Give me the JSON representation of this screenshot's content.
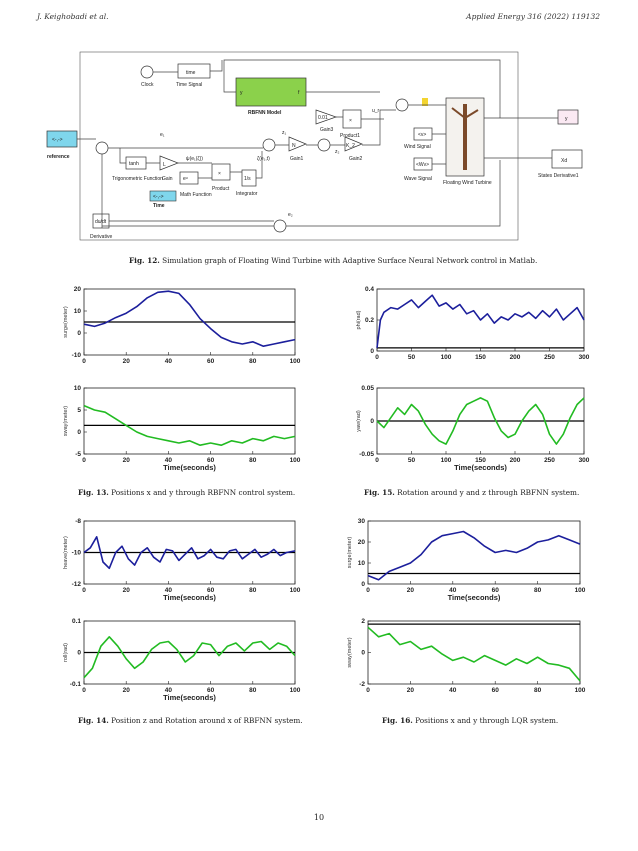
{
  "header": {
    "left": "J. Keighobadi et al.",
    "right": "Applied Energy 316 (2022) 119132"
  },
  "page_number": "10",
  "diagram": {
    "blocks": {
      "clock": "Clock",
      "time": "time",
      "time_signal": "Time Signal",
      "rbfnn": "RBFNN Model",
      "rbfnn_in": "y",
      "rbfnn_out": "f",
      "gain3_val": "0.01",
      "gain3": "Gain3",
      "product1": "Product1",
      "ur": "u_r",
      "y_out": "y",
      "reference_sym": "<-,->",
      "reference": "reference",
      "e1": "e₁",
      "tanh": "tanh",
      "trig": "Trigonometric Function",
      "gain_val": "L",
      "gain": "Gain",
      "psi": "ψ(e₁(ζ))",
      "zeta": "ζ(e₁,t)",
      "math": "Math Function",
      "math_sym": "eᵘ",
      "product": "Product",
      "integrator_sym": "1/s",
      "integrator": "Integrator",
      "time2": "Time",
      "clock2_sym": "<-,->",
      "z1": "z₁",
      "gain1_val": "N",
      "gain1": "Gain1",
      "z2": "z₂",
      "gain2_val": "K_2",
      "gain2": "Gain2",
      "wind_in": "<v>",
      "wind": "Wind Signal",
      "wave_in": "<Wv>",
      "wave": "Wave Signal",
      "turbine": "Floating Wind Turbine",
      "xd": "Xd",
      "states": "States Derivative1",
      "du": "du/dt",
      "derivative": "Derivative",
      "e2": "e₂"
    }
  },
  "captions": {
    "fig12": {
      "label": "Fig. 12.",
      "text": "Simulation graph of Floating Wind Turbine with Adaptive Surface Neural Network control in Matlab."
    },
    "fig13": {
      "label": "Fig. 13.",
      "text": "Positions x and y through RBFNN control system."
    },
    "fig15": {
      "label": "Fig. 15.",
      "text": "Rotation around y and z through RBFNN system."
    },
    "fig14": {
      "label": "Fig. 14.",
      "text": "Position z and Rotation around x of RBFNN system."
    },
    "fig16": {
      "label": "Fig. 16.",
      "text": "Positions x and y through LQR system."
    }
  },
  "chart_data": [
    {
      "id": "f13a",
      "type": "line",
      "color": "#1c1f9c",
      "ylabel": "surge(meter)",
      "xlabel": "",
      "xlim": [
        0,
        100
      ],
      "ylim": [
        -10,
        20
      ],
      "xticks": [
        0,
        20,
        40,
        60,
        80,
        100
      ],
      "yticks": [
        20,
        10,
        0,
        -10
      ],
      "ref": 5,
      "x": [
        0,
        5,
        10,
        15,
        20,
        25,
        30,
        35,
        40,
        45,
        50,
        55,
        60,
        65,
        70,
        75,
        80,
        85,
        90,
        95,
        100
      ],
      "y": [
        4,
        3,
        4.5,
        7,
        9,
        12,
        16,
        18.5,
        19,
        18,
        13,
        6.5,
        2,
        -2,
        -4,
        -5,
        -4,
        -6,
        -5,
        -4,
        -3
      ]
    },
    {
      "id": "f13b",
      "type": "line",
      "color": "#22bb22",
      "ylabel": "sway(meter)",
      "xlabel": "Time(seconds)",
      "xlim": [
        0,
        100
      ],
      "ylim": [
        -5,
        10
      ],
      "xticks": [
        0,
        20,
        40,
        60,
        80,
        100
      ],
      "yticks": [
        10,
        5,
        0,
        -5
      ],
      "ref": 1.5,
      "x": [
        0,
        5,
        10,
        15,
        20,
        25,
        30,
        35,
        40,
        45,
        50,
        55,
        60,
        65,
        70,
        75,
        80,
        85,
        90,
        95,
        100
      ],
      "y": [
        6,
        5,
        4.5,
        3,
        1.5,
        0,
        -1,
        -1.5,
        -2,
        -2.5,
        -2,
        -3,
        -2.5,
        -3,
        -2,
        -2.5,
        -1.5,
        -2,
        -1,
        -1.5,
        -1
      ]
    },
    {
      "id": "f15a",
      "type": "line",
      "color": "#1c1f9c",
      "ylabel": "phi(rad)",
      "xlabel": "",
      "xlim": [
        0,
        300
      ],
      "ylim": [
        0,
        0.4
      ],
      "xticks": [
        0,
        50,
        100,
        150,
        200,
        250,
        300
      ],
      "yticks": [
        0.4,
        0.2,
        0
      ],
      "ref": 0.02,
      "x": [
        0,
        5,
        10,
        20,
        30,
        40,
        50,
        60,
        70,
        80,
        90,
        100,
        110,
        120,
        130,
        140,
        150,
        160,
        170,
        180,
        190,
        200,
        210,
        220,
        230,
        240,
        250,
        260,
        270,
        280,
        290,
        300
      ],
      "y": [
        0.02,
        0.2,
        0.25,
        0.28,
        0.27,
        0.3,
        0.33,
        0.28,
        0.32,
        0.36,
        0.29,
        0.31,
        0.27,
        0.3,
        0.24,
        0.26,
        0.2,
        0.24,
        0.18,
        0.22,
        0.2,
        0.24,
        0.22,
        0.25,
        0.21,
        0.26,
        0.22,
        0.27,
        0.2,
        0.24,
        0.28,
        0.2
      ]
    },
    {
      "id": "f15b",
      "type": "line",
      "color": "#22bb22",
      "ylabel": "yaw(rad)",
      "xlabel": "Time(seconds)",
      "xlim": [
        0,
        300
      ],
      "ylim": [
        -0.05,
        0.05
      ],
      "xticks": [
        0,
        50,
        100,
        150,
        200,
        250,
        300
      ],
      "yticks": [
        0.05,
        0,
        -0.05
      ],
      "ref": 0,
      "x": [
        0,
        10,
        20,
        30,
        40,
        50,
        60,
        70,
        80,
        90,
        100,
        110,
        120,
        130,
        140,
        150,
        160,
        170,
        180,
        190,
        200,
        210,
        220,
        230,
        240,
        250,
        260,
        270,
        280,
        290,
        300
      ],
      "y": [
        0,
        -0.01,
        0.005,
        0.02,
        0.01,
        0.025,
        0.015,
        -0.005,
        -0.02,
        -0.03,
        -0.035,
        -0.015,
        0.01,
        0.025,
        0.03,
        0.035,
        0.03,
        0.005,
        -0.015,
        -0.025,
        -0.02,
        0,
        0.015,
        0.025,
        0.01,
        -0.02,
        -0.035,
        -0.02,
        0.005,
        0.025,
        0.035
      ]
    },
    {
      "id": "f14a",
      "type": "line",
      "color": "#1c1f9c",
      "ylabel": "heave(meter)",
      "xlabel": "Time(seconds)",
      "xlim": [
        0,
        100
      ],
      "ylim": [
        -12,
        -8
      ],
      "xticks": [
        0,
        20,
        40,
        60,
        80,
        100
      ],
      "yticks": [
        -8,
        -10,
        -12
      ],
      "ref": -10,
      "x": [
        0,
        3,
        6,
        9,
        12,
        15,
        18,
        21,
        24,
        27,
        30,
        33,
        36,
        39,
        42,
        45,
        48,
        51,
        54,
        57,
        60,
        63,
        66,
        69,
        72,
        75,
        78,
        81,
        84,
        87,
        90,
        93,
        96,
        100
      ],
      "y": [
        -10,
        -9.7,
        -9,
        -10.6,
        -11,
        -10,
        -9.6,
        -10.4,
        -10.8,
        -10,
        -9.7,
        -10.3,
        -10.6,
        -9.8,
        -9.9,
        -10.5,
        -10.1,
        -9.7,
        -10.4,
        -10.2,
        -9.8,
        -10.3,
        -10.4,
        -9.9,
        -9.8,
        -10.4,
        -10.1,
        -9.8,
        -10.3,
        -10.1,
        -9.8,
        -10.2,
        -10,
        -9.9
      ]
    },
    {
      "id": "f14b",
      "type": "line",
      "color": "#22bb22",
      "ylabel": "roll(rad)",
      "xlabel": "Time(seconds)",
      "xlim": [
        0,
        100
      ],
      "ylim": [
        -0.1,
        0.1
      ],
      "xticks": [
        0,
        20,
        40,
        60,
        80,
        100
      ],
      "yticks": [
        0.1,
        0,
        -0.1
      ],
      "ref": 0,
      "x": [
        0,
        4,
        8,
        12,
        16,
        20,
        24,
        28,
        32,
        36,
        40,
        44,
        48,
        52,
        56,
        60,
        64,
        68,
        72,
        76,
        80,
        84,
        88,
        92,
        96,
        100
      ],
      "y": [
        -0.08,
        -0.05,
        0.02,
        0.05,
        0.02,
        -0.02,
        -0.05,
        -0.03,
        0.01,
        0.03,
        0.035,
        0.01,
        -0.03,
        -0.01,
        0.03,
        0.025,
        -0.01,
        0.02,
        0.03,
        0.005,
        0.03,
        0.035,
        0.01,
        0.03,
        0.02,
        -0.01
      ]
    },
    {
      "id": "f16a",
      "type": "line",
      "color": "#1c1f9c",
      "ylabel": "surge(meter)",
      "xlabel": "Time(seconds)",
      "xlim": [
        0,
        100
      ],
      "ylim": [
        0,
        30
      ],
      "xticks": [
        0,
        20,
        40,
        60,
        80,
        100
      ],
      "yticks": [
        30,
        20,
        10,
        0
      ],
      "ref": 5,
      "x": [
        0,
        5,
        10,
        15,
        20,
        25,
        30,
        35,
        40,
        45,
        50,
        55,
        60,
        65,
        70,
        75,
        80,
        85,
        90,
        95,
        100
      ],
      "y": [
        4,
        2,
        6,
        8,
        10,
        14,
        20,
        23,
        24,
        25,
        22,
        18,
        15,
        16,
        15,
        17,
        20,
        21,
        23,
        21,
        19
      ]
    },
    {
      "id": "f16b",
      "type": "line",
      "color": "#22bb22",
      "ylabel": "sway(meter)",
      "xlabel": "",
      "xlim": [
        0,
        100
      ],
      "ylim": [
        -2,
        2
      ],
      "xticks": [
        0,
        20,
        40,
        60,
        80,
        100
      ],
      "yticks": [
        2,
        0,
        -2
      ],
      "ref": 1.8,
      "x": [
        0,
        5,
        10,
        15,
        20,
        25,
        30,
        35,
        40,
        45,
        50,
        55,
        60,
        65,
        70,
        75,
        80,
        85,
        90,
        95,
        100
      ],
      "y": [
        1.6,
        1,
        1.2,
        0.5,
        0.7,
        0.2,
        0.4,
        -0.1,
        -0.5,
        -0.3,
        -0.6,
        -0.2,
        -0.5,
        -0.8,
        -0.4,
        -0.7,
        -0.3,
        -0.7,
        -0.8,
        -1,
        -1.8
      ]
    }
  ]
}
